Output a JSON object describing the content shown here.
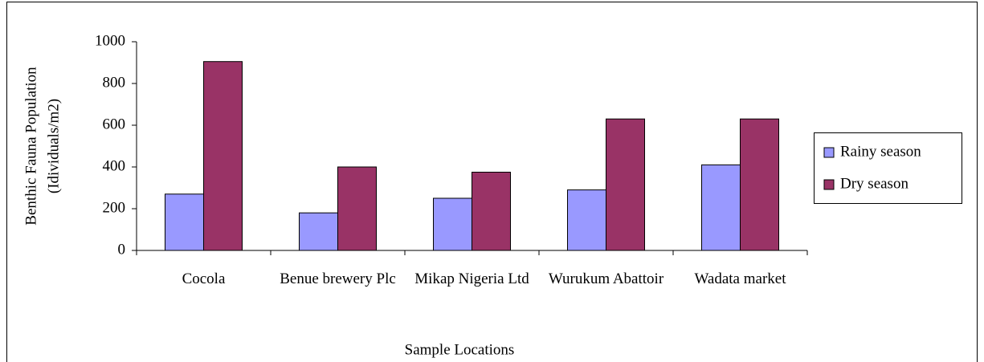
{
  "chart_data": {
    "type": "bar",
    "categories": [
      "Cocola",
      "Benue brewery Plc",
      "Mikap Nigeria Ltd",
      "Wurukum Abattoir",
      "Wadata market"
    ],
    "series": [
      {
        "name": "Rainy season",
        "color": "#9999ff",
        "values": [
          270,
          180,
          250,
          290,
          410
        ]
      },
      {
        "name": "Dry season",
        "color": "#993366",
        "values": [
          905,
          400,
          375,
          630,
          630
        ]
      }
    ],
    "ylim": [
      0,
      1000
    ],
    "yticks": [
      0,
      200,
      400,
      600,
      800,
      1000
    ],
    "y_label": [
      "Benthic Fauna Population",
      "(Idividuals/m2)"
    ],
    "x_label": "Sample Locations",
    "grid": false,
    "legend": "right"
  }
}
